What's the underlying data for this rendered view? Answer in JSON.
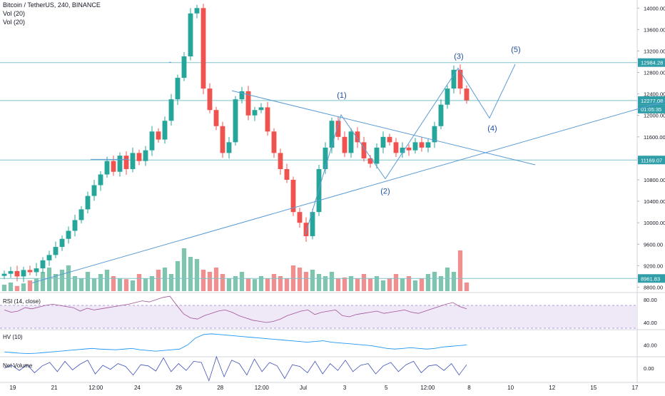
{
  "header": {
    "symbol_line": "Bitcoin / TetherUS, 240, BINANCE",
    "vol_line_1": "Vol (20)",
    "vol_line_2": "Vol (20)"
  },
  "panes": {
    "rsi": {
      "label": "RSI (14, close)",
      "ticks": [
        "80.00",
        "40.00"
      ]
    },
    "hv": {
      "label": "HV (10)",
      "ticks": [
        "40.00"
      ]
    },
    "netvol": {
      "label": "Net Volume",
      "ticks": [
        "0.00"
      ]
    }
  },
  "chart_data": {
    "type": "candlestick",
    "symbol": "Bitcoin / TetherUS",
    "interval": "240",
    "exchange": "BINANCE",
    "y_ticks": [
      8800,
      9200,
      9600,
      10000,
      10400,
      10800,
      11200,
      11600,
      12000,
      12400,
      12800,
      13200,
      13600,
      14000
    ],
    "y_tick_labels": [
      "8800.00",
      "9200.00",
      "9600.00",
      "10000.00",
      "10400.00",
      "10800.00",
      "11200.00",
      "11600.00",
      "12000.00",
      "12400.00",
      "12800.00",
      "13200.00",
      "13600.00",
      "14000.00"
    ],
    "ylim": [
      8700,
      14150
    ],
    "x_tick_labels": [
      "19",
      "21",
      "12:00",
      "24",
      "26",
      "28",
      "12:00",
      "Jul",
      "3",
      "5",
      "12:00",
      "8",
      "10",
      "12",
      "15",
      "17"
    ],
    "horizontal_levels": [
      {
        "value": 12984.28,
        "label": "12984.28"
      },
      {
        "value": 12277.08,
        "label": "12277.08"
      },
      {
        "value": 11169.07,
        "label": "11169.07"
      },
      {
        "value": 8961.83,
        "label": "8961.83"
      }
    ],
    "countdown_label": "01:05:35",
    "current_price": 12277.08,
    "wave_labels": [
      "(1)",
      "(2)",
      "(3)",
      "(4)",
      "(5)"
    ],
    "price_path": [
      9050,
      9100,
      9000,
      9120,
      9080,
      9150,
      9300,
      9400,
      9550,
      9700,
      9850,
      10050,
      10250,
      10500,
      10700,
      10900,
      11150,
      10950,
      11250,
      11000,
      11300,
      11150,
      11350,
      11700,
      11550,
      11900,
      12300,
      12700,
      13100,
      13900,
      14000,
      12500,
      12100,
      11800,
      11300,
      11500,
      12300,
      12450,
      12000,
      12100,
      12150,
      11700,
      11300,
      11000,
      10800,
      10200,
      10000,
      9750,
      10200,
      11000,
      11400,
      11900,
      11600,
      11300,
      11700,
      11500,
      11200,
      11100,
      11400,
      11600,
      11500,
      11300,
      11400,
      11350,
      11500,
      11400,
      11500,
      11800,
      12200,
      12500,
      12850,
      12500,
      12280
    ],
    "volume_levels": [
      0.15,
      0.2,
      0.12,
      0.18,
      0.25,
      0.3,
      0.45,
      0.55,
      0.4,
      0.5,
      0.6,
      0.35,
      0.3,
      0.45,
      0.3,
      0.4,
      0.5,
      0.35,
      0.3,
      0.28,
      0.25,
      0.4,
      0.3,
      0.35,
      0.5,
      0.55,
      0.4,
      0.7,
      1.0,
      0.8,
      0.75,
      0.5,
      0.45,
      0.55,
      0.4,
      0.3,
      0.35,
      0.45,
      0.3,
      0.28,
      0.35,
      0.3,
      0.4,
      0.35,
      0.3,
      0.6,
      0.55,
      0.45,
      0.5,
      0.4,
      0.35,
      0.45,
      0.3,
      0.32,
      0.35,
      0.3,
      0.4,
      0.3,
      0.35,
      0.25,
      0.3,
      0.4,
      0.3,
      0.35,
      0.25,
      0.3,
      0.4,
      0.45,
      0.35,
      0.55,
      0.45,
      0.95,
      0.2
    ],
    "volume_colors": {
      "up": "#7fc4ae",
      "down": "#ef8f8f"
    },
    "candle_colors": {
      "up": "#26a69a",
      "down": "#ef5350"
    },
    "rsi_values": [
      62,
      58,
      60,
      66,
      64,
      67,
      70,
      72,
      70,
      68,
      66,
      60,
      65,
      62,
      64,
      66,
      68,
      70,
      72,
      75,
      78,
      76,
      80,
      84,
      86,
      70,
      55,
      48,
      46,
      52,
      56,
      60,
      62,
      58,
      52,
      48,
      44,
      42,
      40,
      42,
      46,
      52,
      56,
      60,
      62,
      54,
      58,
      60,
      62,
      52,
      50,
      54,
      56,
      58,
      60,
      56,
      58,
      60,
      62,
      58,
      56,
      60,
      64,
      68,
      72,
      75,
      68,
      64
    ],
    "hv_values": [
      20,
      18,
      16,
      15,
      16,
      18,
      20,
      22,
      24,
      26,
      28,
      30,
      28,
      27,
      26,
      28,
      30,
      26,
      24,
      22,
      24,
      26,
      28,
      40,
      60,
      70,
      72,
      70,
      68,
      66,
      64,
      62,
      60,
      58,
      56,
      54,
      52,
      50,
      48,
      50,
      52,
      48,
      46,
      44,
      42,
      40,
      38,
      34,
      30,
      28,
      30,
      32,
      30,
      28,
      30,
      34,
      36,
      38,
      40
    ],
    "net_volume_values": [
      0,
      5,
      -4,
      6,
      -8,
      4,
      10,
      -6,
      12,
      -3,
      7,
      14,
      -10,
      5,
      -2,
      8,
      3,
      -12,
      6,
      4,
      -5,
      18,
      -6,
      8,
      -4,
      12,
      10,
      -22,
      20,
      -15,
      14,
      8,
      -12,
      16,
      -6,
      10,
      4,
      -18,
      6,
      3,
      -8,
      12,
      -10,
      8,
      -4,
      14,
      -6,
      5,
      8,
      -10,
      4,
      10,
      -6,
      6,
      12,
      -8,
      4,
      6,
      -4,
      8,
      -12,
      6
    ],
    "title": ""
  }
}
